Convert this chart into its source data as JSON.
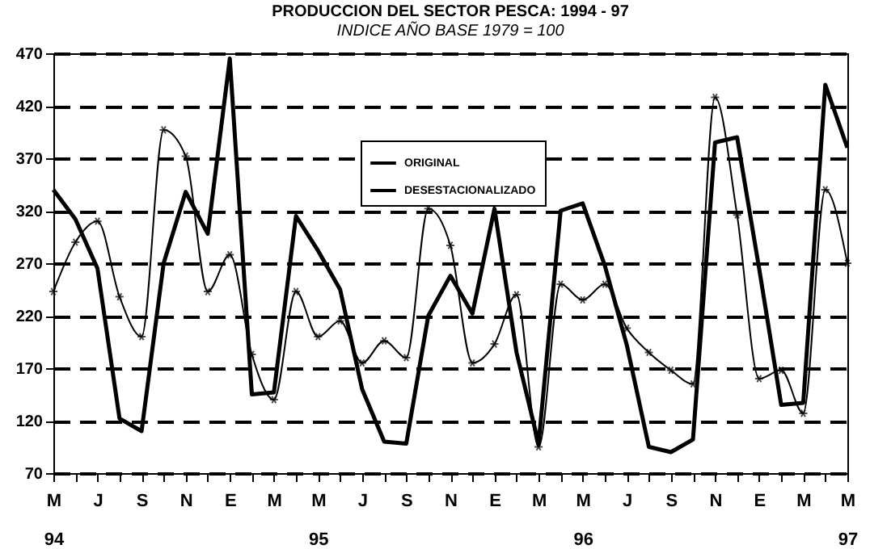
{
  "chart_data": {
    "type": "line",
    "title": "PRODUCCION DEL SECTOR PESCA: 1994 - 97",
    "subtitle": "INDICE AÑO BASE 1979 = 100",
    "categories": [
      "M 94",
      null,
      "J",
      null,
      "S",
      null,
      "N",
      null,
      "E",
      null,
      "M",
      null,
      "M 95",
      null,
      "J",
      null,
      "S",
      null,
      "N",
      null,
      "E",
      null,
      "M",
      null,
      "M 96",
      null,
      "J",
      null,
      "S",
      null,
      "N",
      null,
      "E",
      null,
      "M",
      null,
      "M 97"
    ],
    "series": [
      {
        "name": "ORIGINAL",
        "color": "#000000",
        "marker": "none",
        "values": [
          340,
          312,
          265,
          122,
          110,
          270,
          338,
          298,
          465,
          145,
          147,
          315,
          282,
          245,
          150,
          100,
          98,
          220,
          258,
          222,
          322,
          185,
          98,
          320,
          327,
          268,
          192,
          95,
          90,
          102,
          385,
          390,
          265,
          135,
          137,
          440,
          380
        ]
      },
      {
        "name": "DESESTACIONALIZADO",
        "color": "#000000",
        "marker": "cross",
        "values": [
          243,
          290,
          310,
          238,
          200,
          397,
          372,
          243,
          278,
          183,
          140,
          243,
          200,
          215,
          175,
          196,
          180,
          322,
          287,
          175,
          193,
          240,
          95,
          250,
          235,
          250,
          208,
          185,
          168,
          155,
          428,
          316,
          160,
          168,
          127,
          340,
          270
        ]
      }
    ],
    "ylim": [
      70,
      470
    ],
    "yticks": [
      70,
      120,
      170,
      220,
      270,
      320,
      370,
      420,
      470
    ],
    "grid": "y",
    "legend": "top right"
  }
}
